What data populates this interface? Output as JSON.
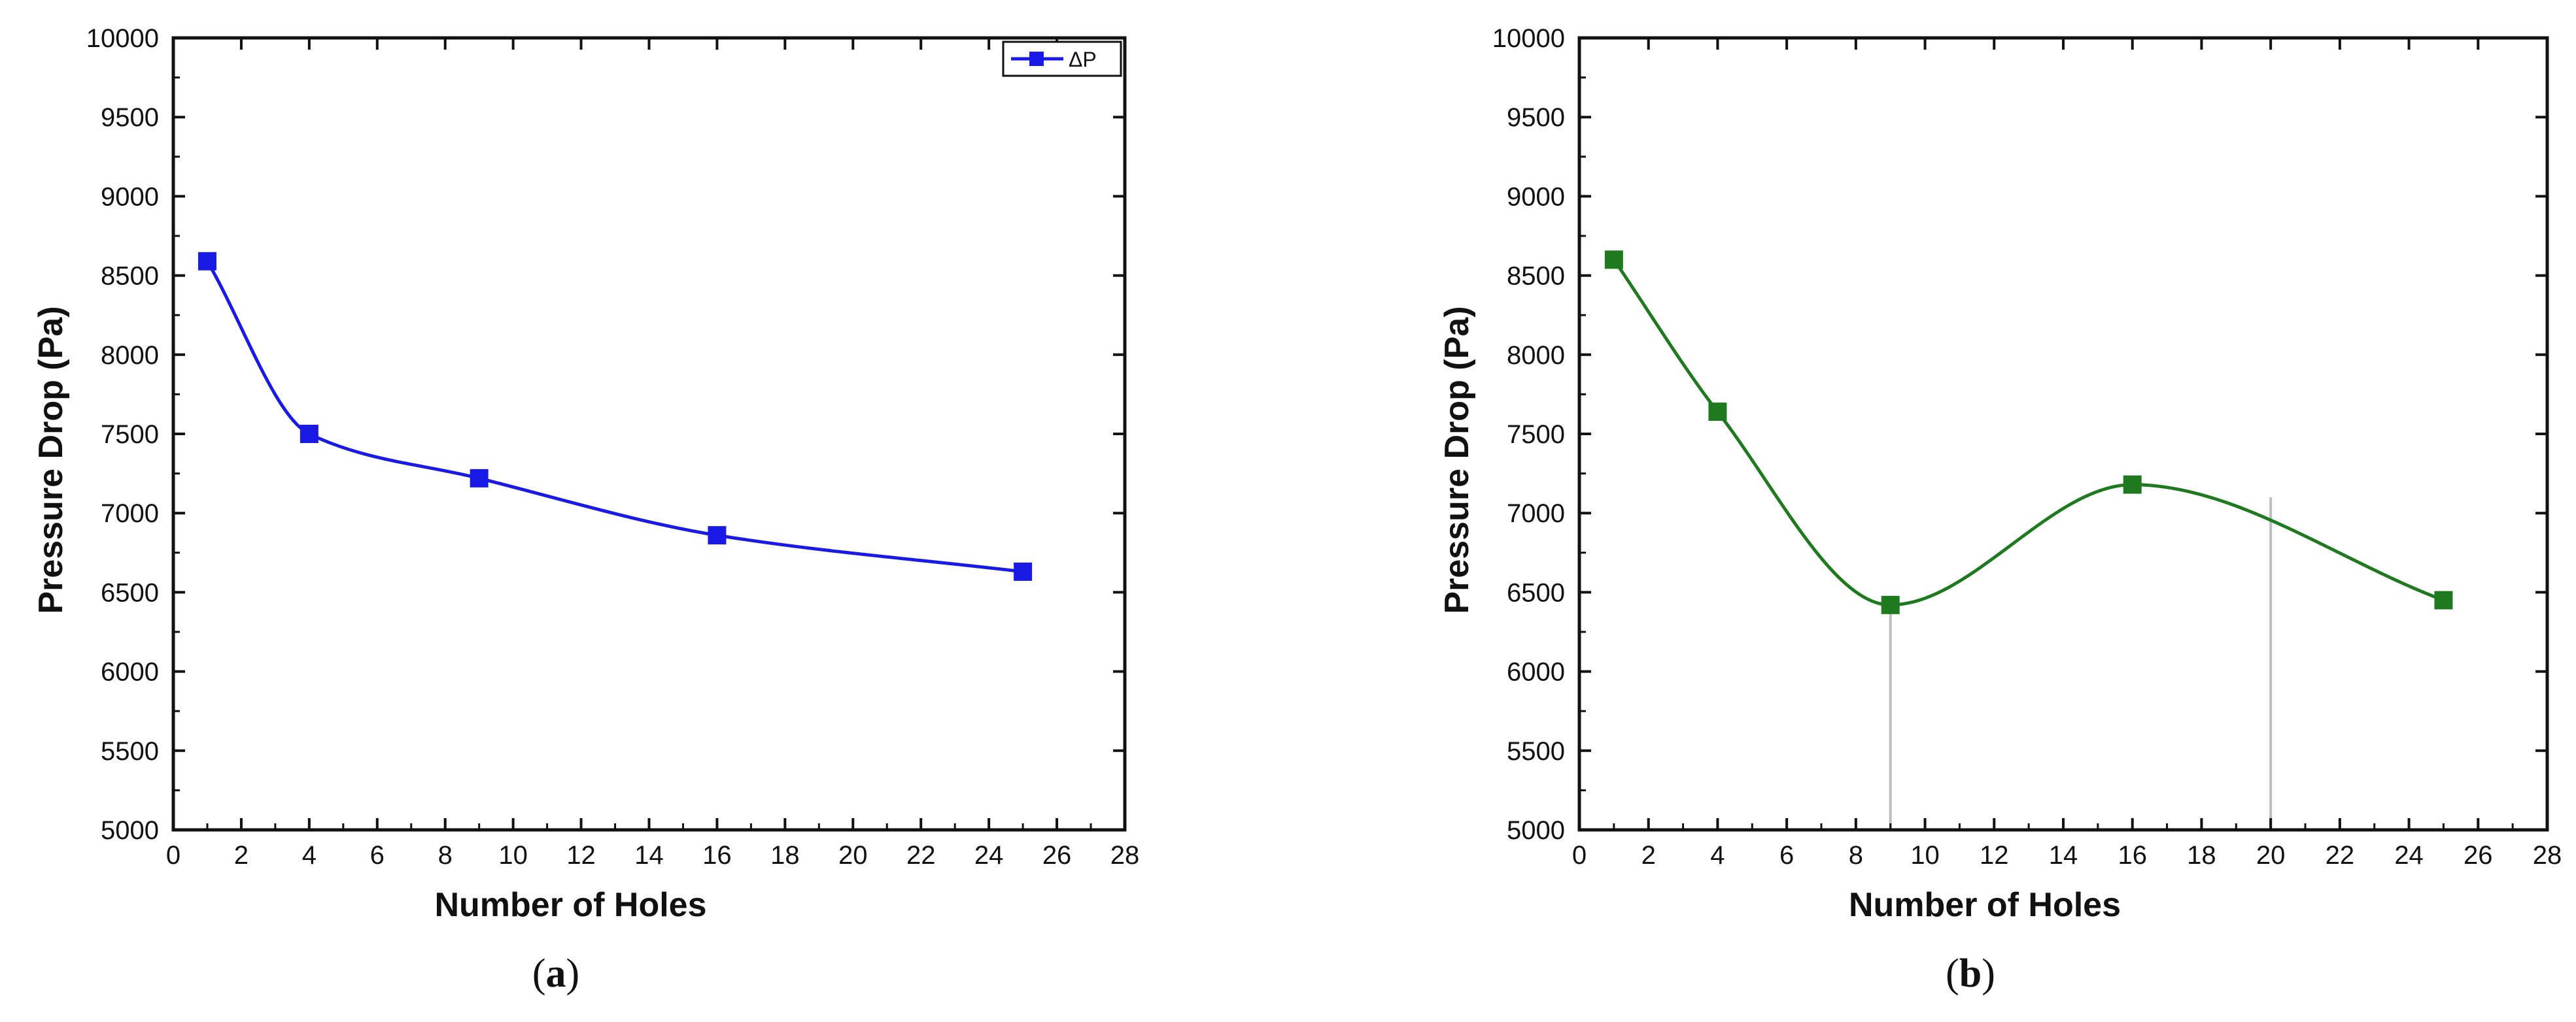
{
  "chart_data": [
    {
      "type": "line",
      "panel": "a",
      "caption": "a",
      "xlabel": "Number of Holes",
      "ylabel": "Pressure Drop (Pa)",
      "xlim": [
        0,
        28
      ],
      "ylim": [
        5000,
        10000
      ],
      "xticks": [
        0,
        2,
        4,
        6,
        8,
        10,
        12,
        14,
        16,
        18,
        20,
        22,
        24,
        26,
        28
      ],
      "yticks": [
        5000,
        5500,
        6000,
        6500,
        7000,
        7500,
        8000,
        8500,
        9000,
        9500,
        10000
      ],
      "grid": false,
      "legend_position": "top-right",
      "series": [
        {
          "name": "ΔP",
          "color": "#1a1ae6",
          "marker": "square",
          "x": [
            1,
            4,
            9,
            16,
            25
          ],
          "y": [
            8590,
            7500,
            7220,
            6860,
            6630
          ]
        }
      ]
    },
    {
      "type": "line",
      "panel": "b",
      "caption": "b",
      "xlabel": "Number of Holes",
      "ylabel": "Pressure Drop (Pa)",
      "xlim": [
        0,
        28
      ],
      "ylim": [
        5000,
        10000
      ],
      "xticks": [
        0,
        2,
        4,
        6,
        8,
        10,
        12,
        14,
        16,
        18,
        20,
        22,
        24,
        26,
        28
      ],
      "yticks": [
        5000,
        5500,
        6000,
        6500,
        7000,
        7500,
        8000,
        8500,
        9000,
        9500,
        10000
      ],
      "grid": false,
      "reference_lines_x": [
        9,
        20
      ],
      "series": [
        {
          "color": "#1f7a1f",
          "marker": "square",
          "x": [
            1,
            4,
            9,
            16,
            25
          ],
          "y": [
            8600,
            7640,
            6420,
            7180,
            6450
          ]
        }
      ]
    }
  ]
}
